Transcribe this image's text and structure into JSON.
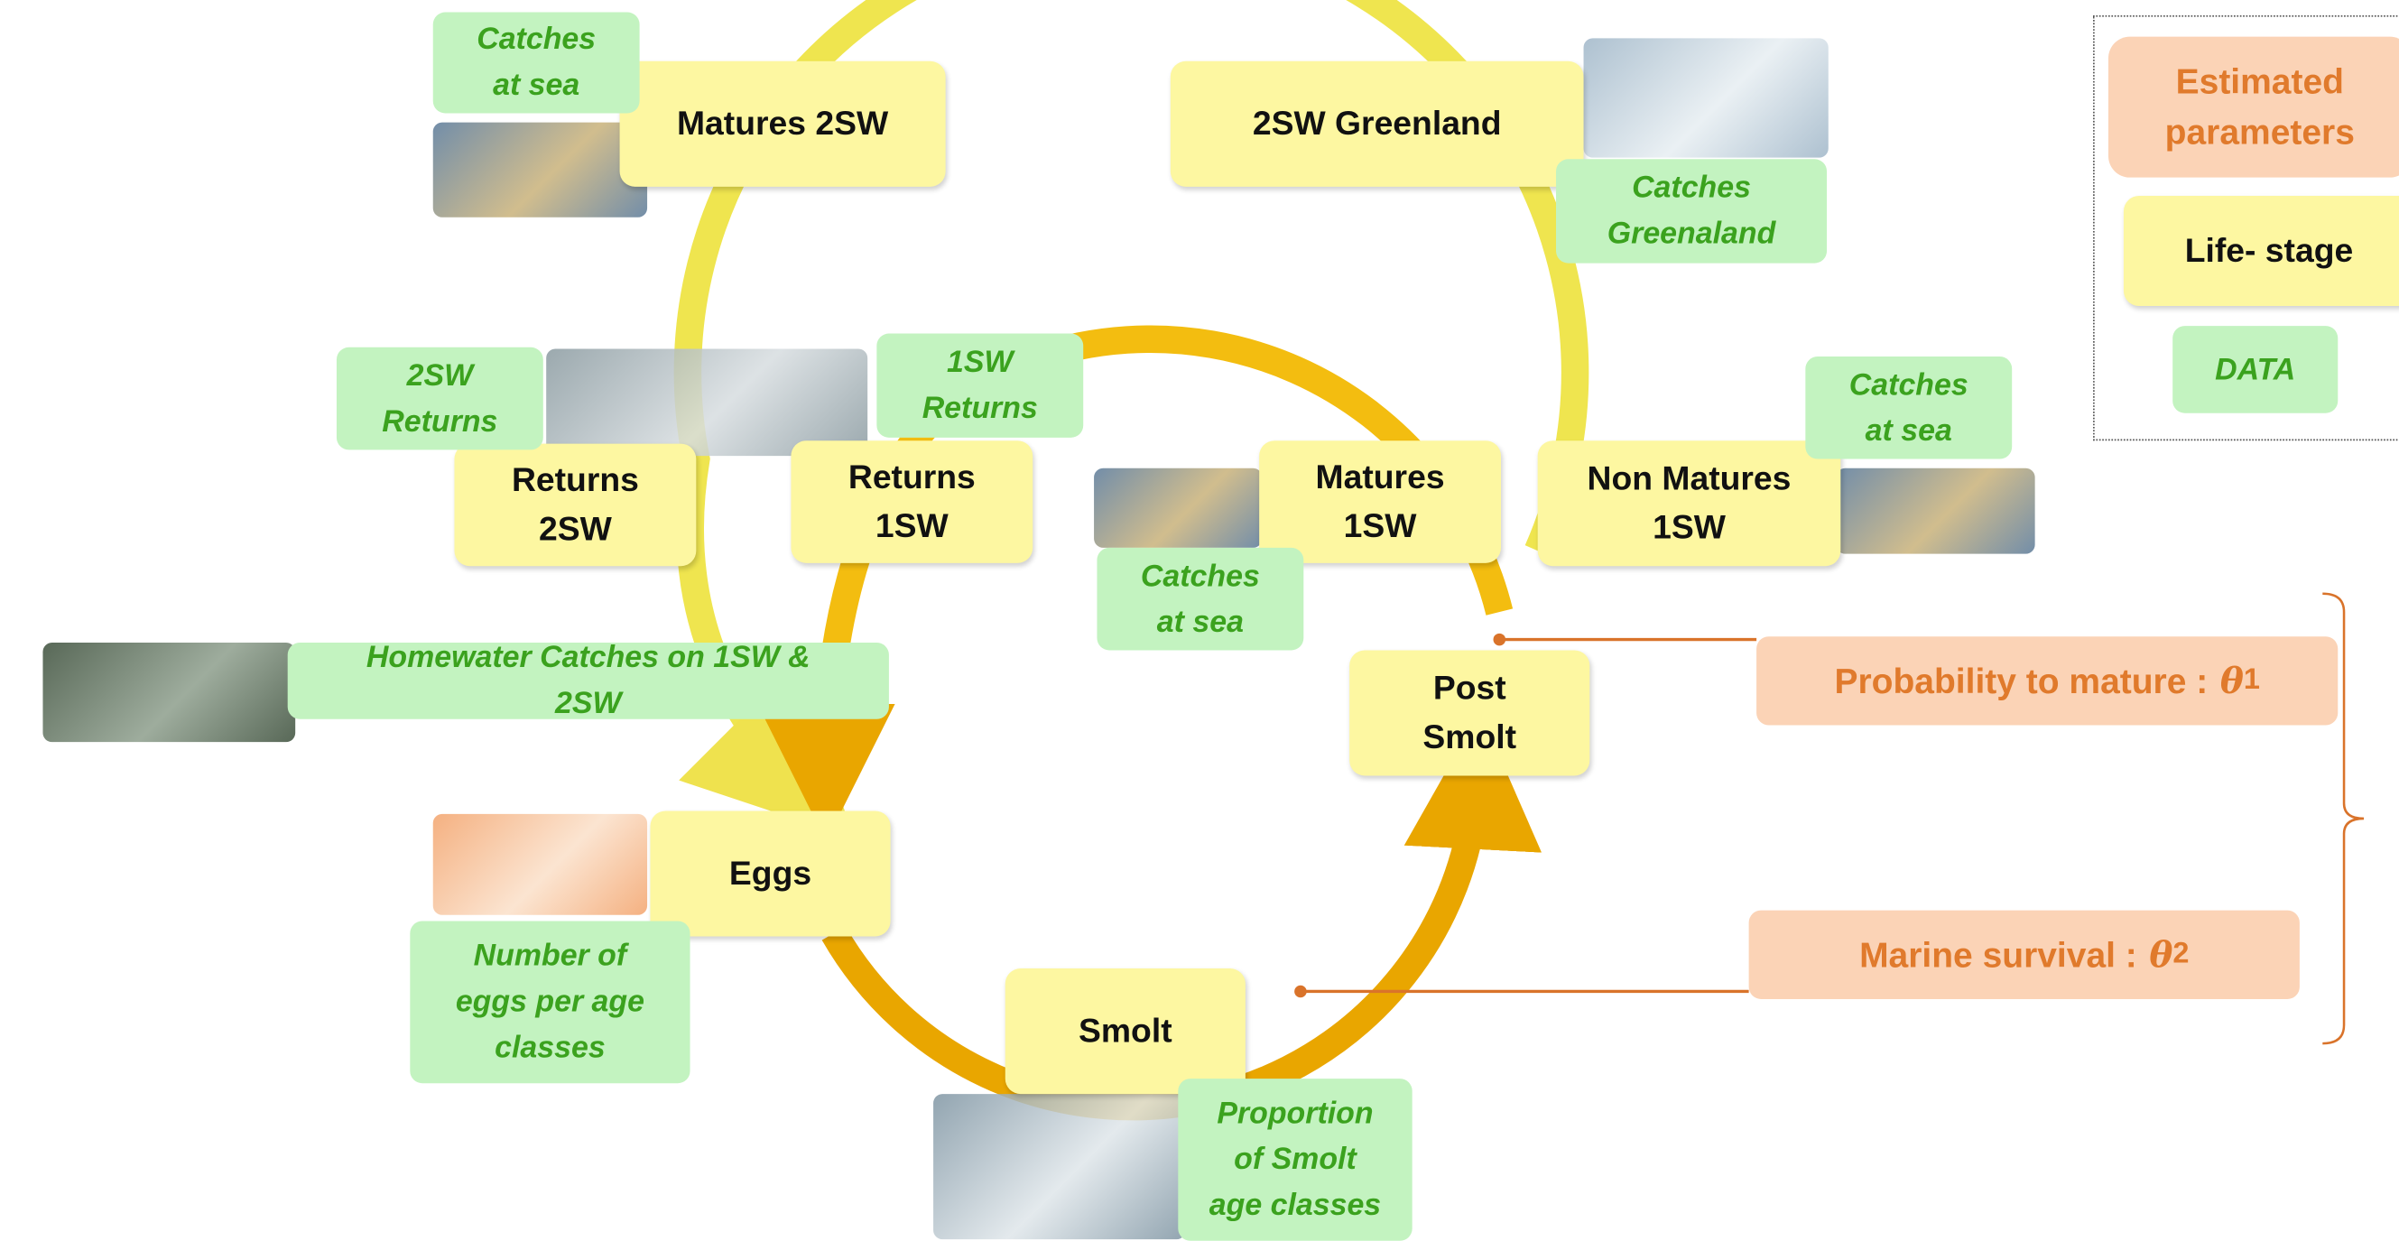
{
  "life_stages": [
    {
      "label": "Matures 2SW"
    },
    {
      "label": "2SW Greenland"
    },
    {
      "label": "Returns\n2SW"
    },
    {
      "label": "Returns\n1SW"
    },
    {
      "label": "Matures\n1SW"
    },
    {
      "label": "Non Matures\n1SW"
    },
    {
      "label": "Post\nSmolt"
    },
    {
      "label": "Eggs"
    },
    {
      "label": "Smolt"
    }
  ],
  "data_labels": [
    {
      "label": "Catches\nat sea"
    },
    {
      "label": "Catches\nGreenaland"
    },
    {
      "label": "2SW\nReturns"
    },
    {
      "label": "1SW\nReturns"
    },
    {
      "label": "Catches\nat sea"
    },
    {
      "label": "Catches\nat sea"
    },
    {
      "label": "Homewater Catches on 1SW &\n2SW"
    },
    {
      "label": "Number of\neggs per age\nclasses"
    },
    {
      "label": "Proportion\nof Smolt\nage classes"
    }
  ],
  "parameters": [
    {
      "text": "Probability to mature :",
      "symbol": "θ",
      "subscript": "1"
    },
    {
      "text": "Marine survival :",
      "symbol": "θ",
      "subscript": "2"
    }
  ],
  "legend": {
    "parameters": "Estimated\nparameters",
    "life_stage": "Life- stage",
    "data": "DATA"
  }
}
